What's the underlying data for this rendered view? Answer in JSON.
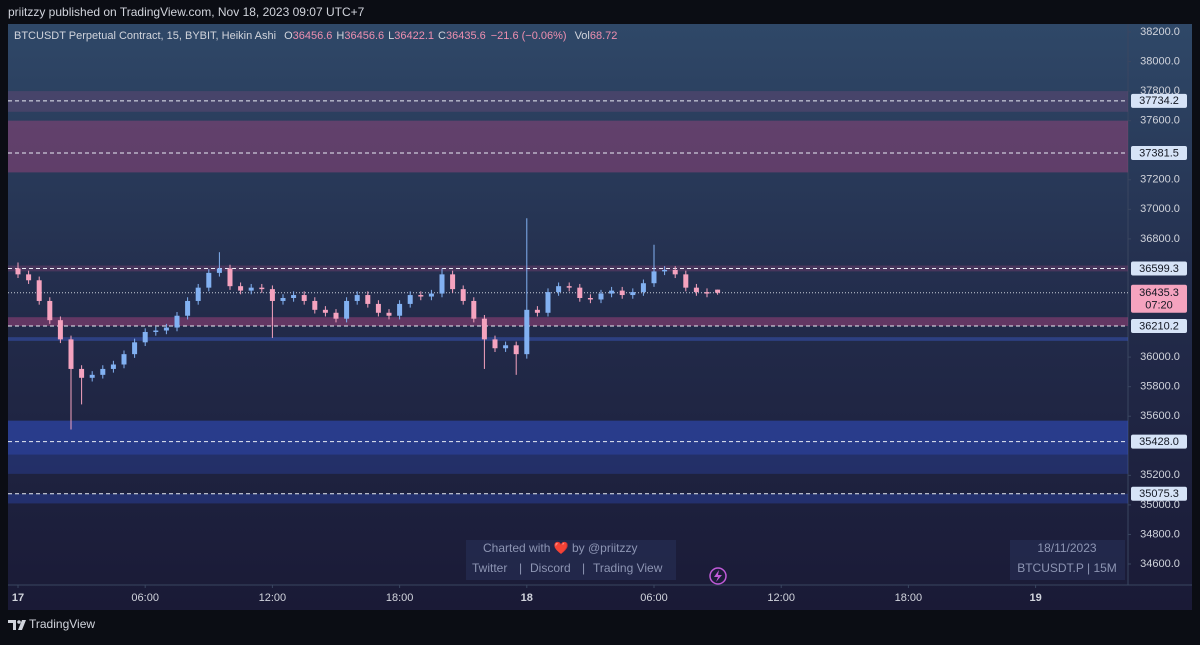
{
  "header": {
    "text": "priitzzy published on TradingView.com, Nov 18, 2023 09:07 UTC+7"
  },
  "footer": {
    "brand": "TradingView"
  },
  "chart_data": {
    "type": "candlestick",
    "legend": {
      "symbol": "BTCUSDT Perpetual Contract, 15, BYBIT, Heikin Ashi",
      "items": [
        {
          "label": "O",
          "value": 36456.6
        },
        {
          "label": "H",
          "value": 36456.6
        },
        {
          "label": "L",
          "value": 36422.1
        },
        {
          "label": "C",
          "value": 36435.6
        }
      ],
      "change": "−21.6 (−0.06%)",
      "vol_label": "Vol",
      "vol": 68.72
    },
    "colors": {
      "up": "#82b1f2",
      "down": "#f5a3bf"
    },
    "open": [
      36600,
      36560,
      36520,
      36380,
      36250,
      36120,
      35920,
      35860,
      35880,
      35920,
      35950,
      36020,
      36100,
      36170,
      36180,
      36200,
      36280,
      36380,
      36470,
      36570,
      36600,
      36480,
      36450,
      36470,
      36460,
      36380,
      36400,
      36420,
      36380,
      36320,
      36300,
      36260,
      36380,
      36420,
      36360,
      36300,
      36280,
      36360,
      36420,
      36410,
      36430,
      36560,
      36460,
      36380,
      36260,
      36120,
      36060,
      36080,
      36020,
      36320,
      36300,
      36440,
      36480,
      36470,
      36400,
      36390,
      36430,
      36450,
      36420,
      36440,
      36500,
      36580,
      36590,
      36560,
      36470,
      36440,
      36456.6
    ],
    "high": [
      36640,
      36585,
      36545,
      36405,
      36275,
      36145,
      35945,
      35905,
      35945,
      35975,
      36045,
      36125,
      36195,
      36205,
      36225,
      36305,
      36405,
      36495,
      36595,
      36710,
      36625,
      36505,
      36495,
      36495,
      36485,
      36425,
      36445,
      36445,
      36405,
      36345,
      36325,
      36405,
      36445,
      36445,
      36385,
      36325,
      36385,
      36445,
      36445,
      36455,
      36600,
      36585,
      36485,
      36405,
      36285,
      36145,
      36105,
      36105,
      36940,
      36345,
      36465,
      36505,
      36505,
      36495,
      36425,
      36455,
      36475,
      36475,
      36465,
      36525,
      36760,
      36615,
      36615,
      36585,
      36495,
      36465,
      36456.6
    ],
    "low": [
      36535,
      36495,
      36355,
      36225,
      36095,
      35510,
      35680,
      35835,
      35855,
      35895,
      35925,
      35995,
      36075,
      36145,
      36155,
      36175,
      36255,
      36355,
      36445,
      36545,
      36455,
      36425,
      36425,
      36435,
      36130,
      36355,
      36375,
      36355,
      36295,
      36275,
      36235,
      36235,
      36355,
      36335,
      36275,
      36255,
      36255,
      36335,
      36385,
      36385,
      36405,
      36435,
      36355,
      36235,
      35920,
      36035,
      36035,
      35880,
      35990,
      36275,
      36275,
      36415,
      36445,
      36375,
      36365,
      36365,
      36405,
      36395,
      36395,
      36415,
      36475,
      36555,
      36535,
      36445,
      36415,
      36405,
      36422.1
    ],
    "close": [
      36560,
      36520,
      36380,
      36250,
      36120,
      35920,
      35860,
      35880,
      35920,
      35950,
      36020,
      36100,
      36170,
      36180,
      36200,
      36280,
      36380,
      36470,
      36570,
      36600,
      36480,
      36450,
      36470,
      36460,
      36380,
      36400,
      36420,
      36380,
      36320,
      36300,
      36260,
      36380,
      36420,
      36360,
      36300,
      36280,
      36360,
      36420,
      36410,
      36430,
      36560,
      36460,
      36380,
      36260,
      36120,
      36060,
      36080,
      36020,
      36320,
      36300,
      36440,
      36480,
      36470,
      36400,
      36390,
      36430,
      36450,
      36420,
      36440,
      36500,
      36580,
      36590,
      36560,
      36470,
      36440,
      36430,
      36435.6
    ],
    "ylim": [
      34600,
      38200
    ],
    "yticks": [
      {
        "value": 38200,
        "label": "38200.0"
      },
      {
        "value": 38000,
        "label": "38000.0"
      },
      {
        "value": 37800,
        "label": "37800.0"
      },
      {
        "value": 37600,
        "label": "37600.0"
      },
      {
        "value": 37200,
        "label": "37200.0"
      },
      {
        "value": 37000,
        "label": "37000.0"
      },
      {
        "value": 36800,
        "label": "36800.0"
      },
      {
        "value": 36000,
        "label": "36000.0"
      },
      {
        "value": 35800,
        "label": "35800.0"
      },
      {
        "value": 35600,
        "label": "35600.0"
      },
      {
        "value": 35200,
        "label": "35200.0"
      },
      {
        "value": 35000,
        "label": "35000.0"
      },
      {
        "value": 34800,
        "label": "34800.0"
      },
      {
        "value": 34600,
        "label": "34600.0"
      }
    ],
    "xticks": [
      {
        "value": 0,
        "label": "17"
      },
      {
        "value": 12,
        "label": "06:00"
      },
      {
        "value": 24,
        "label": "12:00"
      },
      {
        "value": 36,
        "label": "18:00"
      },
      {
        "value": 48,
        "label": "18"
      },
      {
        "value": 60,
        "label": "06:00"
      },
      {
        "value": 72,
        "label": "12:00"
      },
      {
        "value": 84,
        "label": "18:00"
      },
      {
        "value": 96,
        "label": "19"
      }
    ],
    "zones": [
      {
        "low": 37660,
        "high": 37800,
        "color": "rgba(170,80,140,0.22)"
      },
      {
        "low": 37250,
        "high": 37600,
        "color": "rgba(180,70,130,0.40)"
      },
      {
        "low": 36580,
        "high": 36620,
        "color": "rgba(180,70,130,0.25)"
      },
      {
        "low": 36210,
        "high": 36270,
        "color": "rgba(180,70,130,0.45)"
      },
      {
        "low": 36110,
        "high": 36135,
        "color": "rgba(60,90,200,0.45)"
      },
      {
        "low": 35340,
        "high": 35570,
        "color": "rgba(50,80,200,0.55)"
      },
      {
        "low": 35210,
        "high": 35340,
        "color": "rgba(50,80,200,0.30)"
      },
      {
        "low": 35010,
        "high": 35075,
        "color": "rgba(50,80,200,0.35)"
      }
    ],
    "levels": [
      {
        "value": 37734.2
      },
      {
        "value": 37381.5
      },
      {
        "value": 36599.3
      },
      {
        "value": 36210.2
      },
      {
        "value": 35428,
        "label": "35428.0"
      },
      {
        "value": 35075.3
      }
    ],
    "last_price": {
      "value": 36435.3,
      "countdown": "07:20"
    },
    "watermark": {
      "credit": "Charted with ❤️  by @priitzzy",
      "links": [
        "Twitter",
        "Discord",
        "Trading View"
      ],
      "date": "18/11/2023",
      "symbol": "BTCUSDT.P | 15M"
    }
  }
}
